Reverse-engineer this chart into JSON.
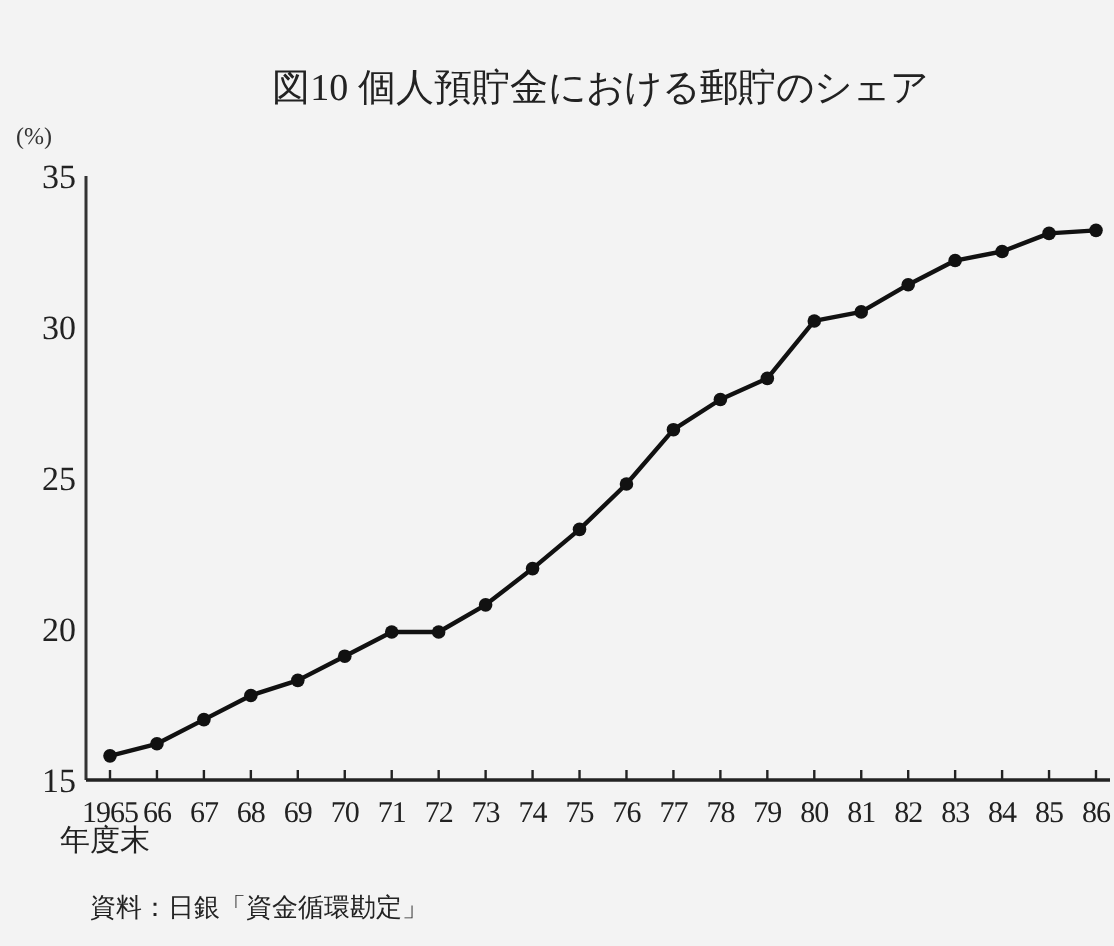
{
  "chart_data": {
    "type": "line",
    "title": "図10 個人預貯金における郵貯のシェア",
    "ylabel": "(%)",
    "xlabel": "年度末",
    "annotations": [
      "資料：日銀「資金循環勘定」"
    ],
    "categories": [
      "1965",
      "66",
      "67",
      "68",
      "69",
      "70",
      "71",
      "72",
      "73",
      "74",
      "75",
      "76",
      "77",
      "78",
      "79",
      "80",
      "81",
      "82",
      "83",
      "84",
      "85",
      "86"
    ],
    "values": [
      15.8,
      16.2,
      17.0,
      17.8,
      18.3,
      19.1,
      19.9,
      19.9,
      20.8,
      22.0,
      23.3,
      24.8,
      26.6,
      27.6,
      28.3,
      30.2,
      30.5,
      31.4,
      32.2,
      32.5,
      33.1,
      33.2
    ],
    "color": "#111111",
    "marker": "circle",
    "line_style": "solid",
    "grid": false,
    "ylim": [
      15,
      35
    ],
    "yticks": [
      15,
      20,
      25,
      30,
      35
    ]
  }
}
